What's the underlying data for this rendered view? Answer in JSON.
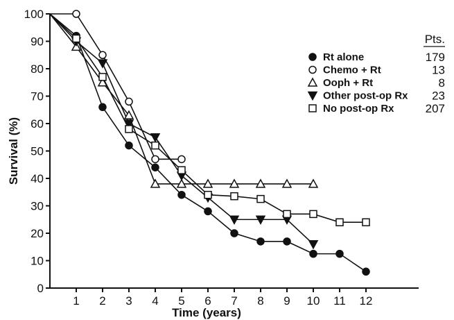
{
  "chart_data": {
    "type": "line",
    "title": "",
    "xlabel": "Time (years)",
    "ylabel": "Survival (%)",
    "xlim": [
      0,
      14
    ],
    "ylim": [
      0,
      100
    ],
    "x_ticks": [
      1,
      2,
      3,
      4,
      5,
      6,
      7,
      8,
      9,
      10,
      11,
      12
    ],
    "y_ticks": [
      0,
      10,
      20,
      30,
      40,
      50,
      60,
      70,
      80,
      90,
      100
    ],
    "grid": false,
    "legend_placement": "right",
    "legend_count_header": "Pts.",
    "series": [
      {
        "name": "Rt alone",
        "marker": "filled-circle",
        "count": "179",
        "x": [
          0,
          1,
          2,
          3,
          4,
          5,
          6,
          7,
          8,
          9,
          10,
          11,
          12
        ],
        "y": [
          100,
          92,
          66,
          52,
          44,
          34,
          28,
          20,
          17,
          17,
          12.5,
          12.5,
          6
        ]
      },
      {
        "name": "Chemo + Rt",
        "marker": "open-circle",
        "count": "13",
        "x": [
          0,
          1,
          2,
          3,
          4,
          5
        ],
        "y": [
          100,
          100,
          85,
          68,
          47,
          47
        ]
      },
      {
        "name": "Ooph + Rt",
        "marker": "open-triangle",
        "count": "8",
        "x": [
          0,
          1,
          2,
          3,
          4,
          5,
          6,
          7,
          8,
          9,
          10
        ],
        "y": [
          100,
          88,
          75,
          63,
          38,
          38,
          38,
          38,
          38,
          38,
          38
        ]
      },
      {
        "name": "Other post-op Rx",
        "marker": "filled-triangle-down",
        "count": "23",
        "x": [
          0,
          1,
          2,
          3,
          4,
          5,
          6,
          7,
          8,
          9,
          10
        ],
        "y": [
          100,
          90,
          82,
          60,
          55,
          41,
          33,
          25,
          25,
          25,
          16
        ]
      },
      {
        "name": "No post-op Rx",
        "marker": "open-square",
        "count": "207",
        "x": [
          0,
          1,
          2,
          3,
          4,
          5,
          6,
          7,
          8,
          9,
          10,
          11,
          12
        ],
        "y": [
          100,
          91,
          77,
          58,
          52,
          43,
          34,
          33.5,
          32.5,
          27,
          27,
          24,
          24
        ]
      }
    ]
  }
}
